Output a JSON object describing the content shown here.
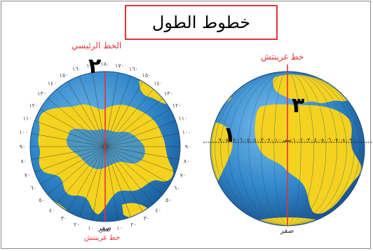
{
  "title": "خطوط الطول",
  "left_globe": {
    "top_label": "الخط الرئيسي",
    "bottom_label": "خط غرينتش",
    "zero_label": "صفر",
    "number": "٢",
    "longitude_ticks": [
      "١٧٠",
      "١٦٠",
      "١٥٠",
      "١٤٠",
      "١٣٠",
      "١٢٠",
      "١١٠",
      "١٠٠",
      "٩٠",
      "٨٠",
      "٧٠",
      "٦٠",
      "٥٠",
      "٤٠",
      "٣٠",
      "٢٠",
      "١٠",
      "صفر",
      "١٠",
      "٢٠",
      "٣٠",
      "٤٠",
      "٥٠",
      "٦٠",
      "٧٠",
      "٨٠",
      "٩٠",
      "١٠٠",
      "١١٠",
      "١٢٠",
      "١٣٠",
      "١٤٠",
      "١٥٠",
      "١٦٠",
      "١٧٠",
      "١٨٠"
    ]
  },
  "right_globe": {
    "top_label": "خط غرينتش",
    "zero_label": "صفر",
    "number_equator": "١",
    "number_meridian": "٣",
    "equator_ticks": "٩٠·٨٠·٧٠·٦٠·٥٠·٤٠·٣٠·٢٠·١٠·صفر·١٠·٢٠·٣٠·٤٠·٥٠·٦٠·٧٠·٨٠·٩٠"
  },
  "colors": {
    "ocean": "#2f86c8",
    "land": "#f4d21f",
    "accent_red": "#e2333a"
  }
}
